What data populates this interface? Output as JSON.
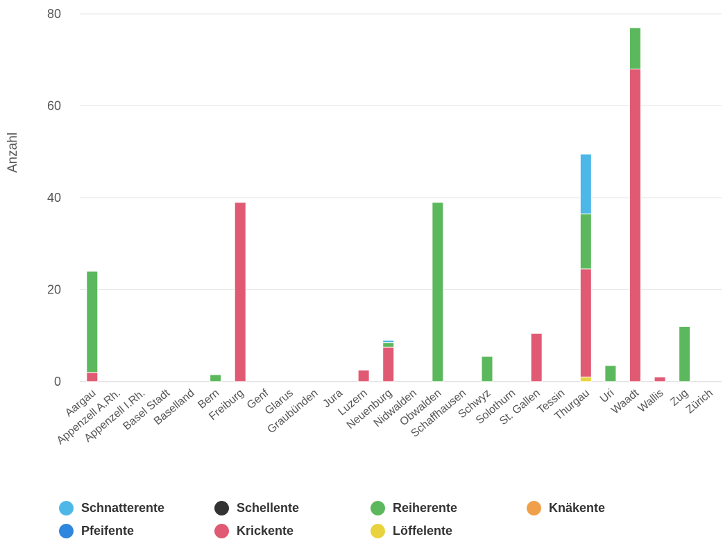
{
  "chart_data": {
    "type": "bar",
    "stacked": true,
    "title": "",
    "xlabel": "",
    "ylabel": "Anzahl",
    "ylim": [
      0,
      80
    ],
    "yticks": [
      0,
      20,
      40,
      60,
      80
    ],
    "grid": true,
    "legend_position": "bottom",
    "categories": [
      "Aargau",
      "Appenzell A.Rh.",
      "Appenzell I.Rh.",
      "Basel Stadt",
      "Baselland",
      "Bern",
      "Freiburg",
      "Genf",
      "Glarus",
      "Graubünden",
      "Jura",
      "Luzern",
      "Neuenburg",
      "Nidwalden",
      "Obwalden",
      "Schaffhausen",
      "Schwyz",
      "Solothurn",
      "St. Gallen",
      "Tessin",
      "Thurgau",
      "Uri",
      "Waadt",
      "Wallis",
      "Zug",
      "Zürich"
    ],
    "series": [
      {
        "name": "Löffelente",
        "color": "#e8d33f",
        "values": [
          0,
          0,
          0,
          0,
          0,
          0,
          0,
          0,
          0,
          0,
          0,
          0,
          0,
          0,
          0,
          0,
          0,
          0,
          0,
          0,
          1,
          0,
          0,
          0,
          0,
          0
        ]
      },
      {
        "name": "Krickente",
        "color": "#e05a73",
        "values": [
          2,
          0,
          0,
          0,
          0,
          0,
          39,
          0,
          0,
          0,
          0,
          2.5,
          7.5,
          0,
          0,
          0,
          0,
          0,
          10.5,
          0,
          23.5,
          0,
          68,
          1,
          0,
          0
        ]
      },
      {
        "name": "Reiherente",
        "color": "#5cb85c",
        "values": [
          22,
          0,
          0,
          0,
          0,
          1.5,
          0,
          0,
          0,
          0,
          0,
          0,
          1,
          0,
          39,
          0,
          5.5,
          0,
          0,
          0,
          12,
          3.5,
          9,
          0,
          12,
          0
        ]
      },
      {
        "name": "Pfeifente",
        "color": "#2e86de",
        "values": [
          0,
          0,
          0,
          0,
          0,
          0,
          0,
          0,
          0,
          0,
          0,
          0,
          0,
          0,
          0,
          0,
          0,
          0,
          0,
          0,
          0,
          0,
          0,
          0,
          0,
          0
        ]
      },
      {
        "name": "Schnatterente",
        "color": "#4db8e8",
        "values": [
          0,
          0,
          0,
          0,
          0,
          0,
          0,
          0,
          0,
          0,
          0,
          0,
          0.5,
          0,
          0,
          0,
          0,
          0,
          0,
          0,
          13,
          0,
          0,
          0,
          0,
          0
        ]
      },
      {
        "name": "Schellente",
        "color": "#333333",
        "values": [
          0,
          0,
          0,
          0,
          0,
          0,
          0,
          0,
          0,
          0,
          0,
          0,
          0,
          0,
          0,
          0,
          0,
          0,
          0,
          0,
          0,
          0,
          0,
          0,
          0,
          0
        ]
      },
      {
        "name": "Knäkente",
        "color": "#f0a04b",
        "values": [
          0,
          0,
          0,
          0,
          0,
          0,
          0,
          0,
          0,
          0,
          0,
          0,
          0,
          0,
          0,
          0,
          0,
          0,
          0,
          0,
          0,
          0,
          0,
          0,
          0,
          0
        ]
      }
    ]
  },
  "legend": [
    {
      "label": "Schnatterente",
      "color": "#4db8e8"
    },
    {
      "label": "Pfeifente",
      "color": "#2e86de"
    },
    {
      "label": "Schellente",
      "color": "#333333"
    },
    {
      "label": "Krickente",
      "color": "#e05a73"
    },
    {
      "label": "Reiherente",
      "color": "#5cb85c"
    },
    {
      "label": "Löffelente",
      "color": "#e8d33f"
    },
    {
      "label": "Knäkente",
      "color": "#f0a04b"
    }
  ]
}
